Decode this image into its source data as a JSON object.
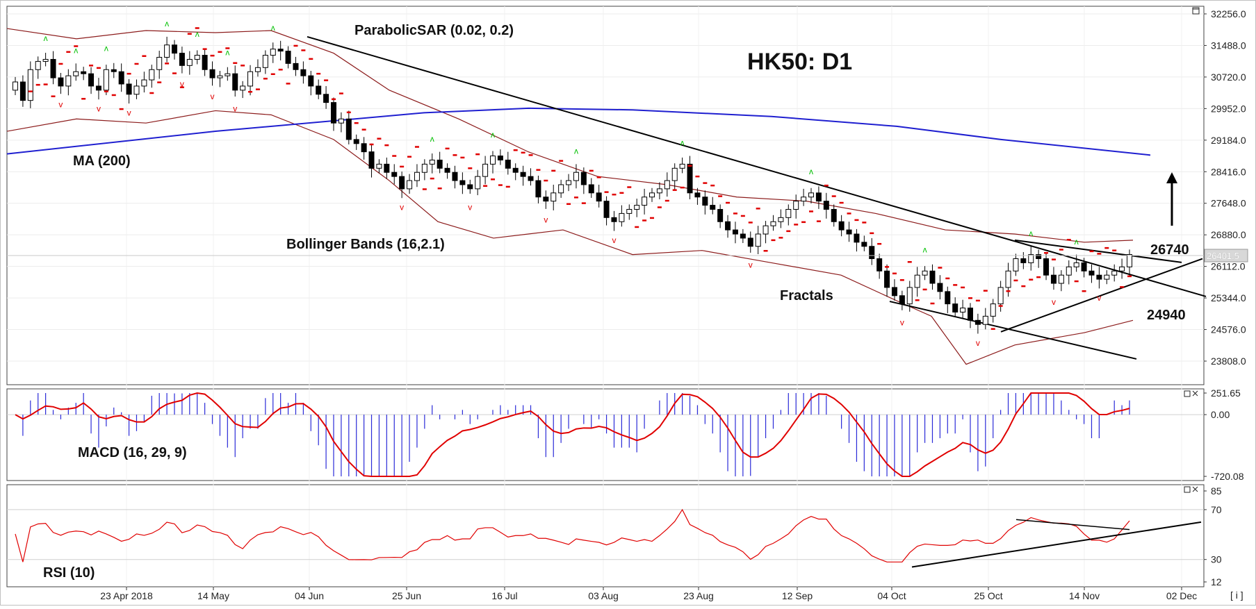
{
  "chart_data": [
    {
      "type": "candlestick",
      "title": "HK50: D1",
      "ylim": [
        23040,
        32256
      ],
      "y_ticks": [
        "32256.0",
        "31488.0",
        "30720.0",
        "29952.0",
        "29184.0",
        "28416.0",
        "27648.0",
        "26880.0",
        "26112.0",
        "25344.0",
        "24576.0",
        "23808.0"
      ],
      "current_price": "26401.5",
      "x_ticks": [
        "23 Apr 2018",
        "14 May",
        "04 Jun",
        "25 Jun",
        "16 Jul",
        "03 Aug",
        "23 Aug",
        "12 Sep",
        "04 Oct",
        "25 Oct",
        "14 Nov",
        "02 Dec"
      ],
      "annotations": {
        "sar": "ParabolicSAR (0.02, 0.2)",
        "ma": "MA (200)",
        "bollinger": "Bollinger Bands (16,2.1)",
        "fractals": "Fractals",
        "resistance": "26740",
        "support": "24940"
      },
      "closes": [
        30600,
        30150,
        30900,
        31100,
        31150,
        30700,
        30500,
        30750,
        30850,
        30800,
        30500,
        30400,
        30900,
        30850,
        30550,
        30300,
        30500,
        30650,
        30900,
        31200,
        31500,
        31300,
        31000,
        31150,
        31250,
        30900,
        30700,
        30750,
        30800,
        30400,
        30500,
        30850,
        30950,
        31250,
        31400,
        31350,
        31050,
        30900,
        30750,
        30500,
        30300,
        30100,
        29600,
        29700,
        29200,
        29100,
        28900,
        28500,
        28600,
        28400,
        28300,
        28000,
        28200,
        28400,
        28600,
        28700,
        28500,
        28400,
        28200,
        28100,
        28000,
        28300,
        28600,
        28800,
        28700,
        28500,
        28400,
        28300,
        28200,
        27800,
        27700,
        27900,
        28100,
        28200,
        28400,
        28100,
        27900,
        27700,
        27300,
        27200,
        27400,
        27500,
        27600,
        27800,
        27900,
        28000,
        28200,
        28500,
        28600,
        27900,
        27800,
        27600,
        27500,
        27200,
        27000,
        26900,
        26800,
        26600,
        26900,
        27100,
        27200,
        27300,
        27500,
        27700,
        27800,
        27900,
        27700,
        27500,
        27200,
        27000,
        26900,
        26700,
        26600,
        26300,
        26000,
        25600,
        25400,
        25200,
        25600,
        25900,
        26000,
        25700,
        25500,
        25200,
        25000,
        25100,
        24800,
        24700,
        24900,
        25200,
        25600,
        26000,
        26300,
        26200,
        26400,
        26300,
        25900,
        25700,
        25900,
        26100,
        26200,
        26000,
        25900,
        25800,
        25900,
        26000,
        26100,
        26401.5
      ],
      "ma200": [
        [
          0,
          28850
        ],
        [
          300,
          29400
        ],
        [
          600,
          29850
        ],
        [
          750,
          29960
        ],
        [
          900,
          29920
        ],
        [
          1100,
          29760
        ],
        [
          1280,
          29520
        ],
        [
          1430,
          29200
        ],
        [
          1600,
          28900
        ],
        [
          1645,
          28820
        ]
      ],
      "bb_upper": [
        [
          0,
          31900
        ],
        [
          100,
          31650
        ],
        [
          200,
          31850
        ],
        [
          300,
          31800
        ],
        [
          380,
          31850
        ],
        [
          470,
          31300
        ],
        [
          550,
          30400
        ],
        [
          650,
          29700
        ],
        [
          750,
          28900
        ],
        [
          850,
          28300
        ],
        [
          950,
          28100
        ],
        [
          1050,
          27800
        ],
        [
          1150,
          27700
        ],
        [
          1250,
          27400
        ],
        [
          1350,
          27000
        ],
        [
          1450,
          26900
        ],
        [
          1550,
          26700
        ],
        [
          1620,
          26750
        ]
      ],
      "bb_lower": [
        [
          0,
          29400
        ],
        [
          100,
          29700
        ],
        [
          200,
          29600
        ],
        [
          300,
          29900
        ],
        [
          380,
          29800
        ],
        [
          470,
          29200
        ],
        [
          550,
          28200
        ],
        [
          620,
          27200
        ],
        [
          700,
          26800
        ],
        [
          800,
          27000
        ],
        [
          900,
          26400
        ],
        [
          1000,
          26500
        ],
        [
          1100,
          26200
        ],
        [
          1200,
          25900
        ],
        [
          1290,
          25200
        ],
        [
          1330,
          24900
        ],
        [
          1380,
          23730
        ],
        [
          1450,
          24200
        ],
        [
          1550,
          24500
        ],
        [
          1620,
          24800
        ]
      ],
      "sar_up_color": "#00c000",
      "sar_down_color": "#e00000",
      "candle_up_color": "#ffffff",
      "candle_down_color": "#000000",
      "ma_color": "#1f1fd0",
      "bb_color": "#8b1a1a",
      "trend_color": "#000000"
    },
    {
      "type": "histogram+line",
      "title": "MACD (16, 29, 9)",
      "ylim": [
        -720.08,
        251.65
      ],
      "y_ticks": [
        "251.65",
        "0.00",
        "-720.08"
      ],
      "signal_color": "#e00000",
      "histogram_color": "#2a2ad8"
    },
    {
      "type": "line",
      "title": "RSI (10)",
      "ylim": [
        12,
        85
      ],
      "y_ticks": [
        "85",
        "70",
        "30",
        "12"
      ],
      "line_color": "#e00000"
    }
  ]
}
